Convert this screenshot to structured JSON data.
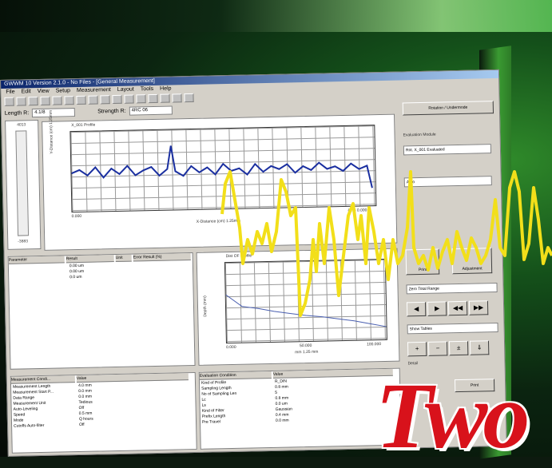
{
  "window": {
    "title": "GWWM 10 Version 2.1.0 - No Files - [General Measurement]",
    "menu": [
      "File",
      "Edit",
      "View",
      "Setup",
      "Measurement",
      "Layout",
      "Tools",
      "Help"
    ]
  },
  "toolbar2": {
    "length_label": "Length R:",
    "length_value": "4.1/8",
    "strength_label": "Strength R:",
    "strength_value": "4RC 06"
  },
  "profile_plot": {
    "tab_label": "X_001 Profile",
    "ylabel": "Y-Distance (cm) 1.25mm",
    "xlabel": "X-Distance (cm) 1.25mm",
    "x_tick_left": "0.000",
    "x_tick_right": "(cm) 0.000"
  },
  "results_table": {
    "headers": [
      "Parameter",
      "Result",
      "Unit",
      "Error Result (%)"
    ],
    "rows": [
      [
        "",
        "0.00 um",
        "",
        ""
      ],
      [
        "",
        "0.00 um",
        "",
        ""
      ],
      [
        "",
        "0.0 um",
        "",
        ""
      ]
    ]
  },
  "lower_plot": {
    "tab_label": "Dist OF Profile",
    "ylabel": "Depth (mm)",
    "xlabel": "mm 1.25 mm",
    "x_ticks": [
      "0.000",
      "50.000",
      "100.000"
    ]
  },
  "left_table": {
    "headers": [
      "Measurement Condi...",
      "Value"
    ],
    "rows": [
      [
        "Measurement Length",
        "4.0 mm"
      ],
      [
        "Measurement Start P...",
        "0.0 mm"
      ],
      [
        "Data Range",
        "0.0 mm"
      ],
      [
        "Measurement Unit",
        "Tedious"
      ],
      [
        "Auto-Leveling",
        "Off"
      ],
      [
        "Speed",
        "0.5 mm"
      ],
      [
        "Mode",
        "Q hours"
      ],
      [
        "Cutoffs Auto-filter",
        "Off"
      ]
    ]
  },
  "right_table": {
    "headers": [
      "Evaluation Condition",
      "Value"
    ],
    "rows": [
      [
        "Kind of Profile",
        "R_DIN"
      ],
      [
        "Sampling Length",
        "0.8 mm"
      ],
      [
        "No of Sampling Len",
        "5"
      ],
      [
        "Lc",
        "0.8 mm"
      ],
      [
        "Ls",
        "0.0 um"
      ],
      [
        "Kind of Filter",
        "Gaussian"
      ],
      [
        "Prefix Length",
        "0.4 mm"
      ],
      [
        "Pre Travel",
        "0.0 mm"
      ]
    ]
  },
  "side_panel": {
    "top_button": "Rotation / Undermode",
    "section_label": "Evaluation Module",
    "select1": "Rot. X_001 Evaluated",
    "select2": "Auto",
    "btn_print": "Print",
    "btn_adjust": "Adjustment",
    "select3": "Zero Total Range",
    "select4": "Show Tables",
    "nav_buttons": [
      "◀",
      "▶",
      "◀◀",
      "▶▶"
    ],
    "icon_buttons": [
      "+",
      "−",
      "±",
      "⇓"
    ],
    "bottom_label": "Detail",
    "print_label": "Print"
  },
  "gauge": {
    "top": "4013",
    "bottom": "-3883"
  },
  "headline": "Two"
}
